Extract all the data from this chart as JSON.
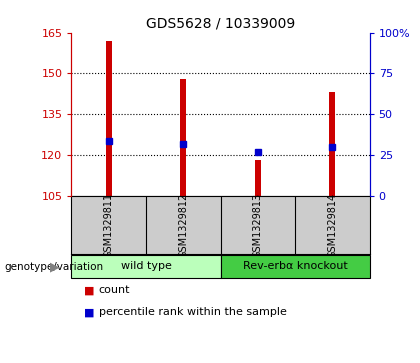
{
  "title": "GDS5628 / 10339009",
  "samples": [
    "GSM1329811",
    "GSM1329812",
    "GSM1329813",
    "GSM1329814"
  ],
  "bar_values": [
    162.0,
    148.0,
    118.0,
    143.0
  ],
  "bar_bottom": 105.0,
  "percentile_values": [
    125.0,
    124.0,
    121.0,
    123.0
  ],
  "bar_color": "#cc0000",
  "percentile_color": "#0000cc",
  "ylim_left": [
    105,
    165
  ],
  "ylim_right": [
    0,
    100
  ],
  "yticks_left": [
    105,
    120,
    135,
    150,
    165
  ],
  "yticks_right": [
    0,
    25,
    50,
    75,
    100
  ],
  "ytick_labels_left": [
    "105",
    "120",
    "135",
    "150",
    "165"
  ],
  "ytick_labels_right": [
    "0",
    "25",
    "50",
    "75",
    "100%"
  ],
  "groups": [
    {
      "label": "wild type",
      "indices": [
        0,
        1
      ],
      "color": "#bbffbb"
    },
    {
      "label": "Rev-erbα knockout",
      "indices": [
        2,
        3
      ],
      "color": "#44cc44"
    }
  ],
  "genotype_label": "genotype/variation",
  "legend_count_label": "count",
  "legend_pct_label": "percentile rank within the sample",
  "bar_width": 0.08,
  "background_color": "#ffffff",
  "plot_bg_color": "#ffffff",
  "sample_area_color": "#cccccc"
}
